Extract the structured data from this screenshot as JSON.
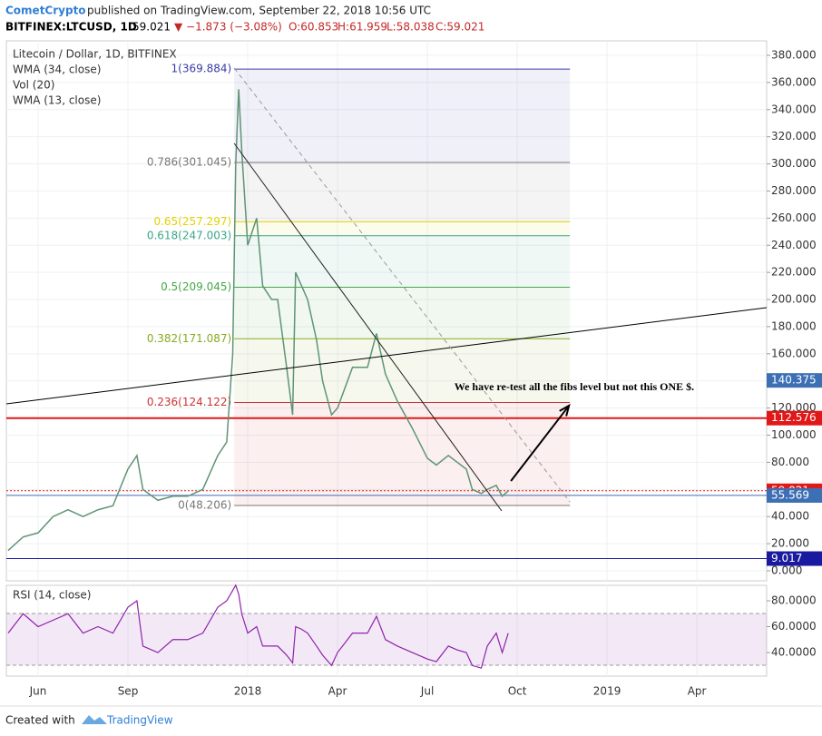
{
  "header": {
    "author": "CometCrypto",
    "published": "published on TradingView.com, September 22, 2018 10:56 UTC",
    "symbol": "BITFINEX:LTCUSD, 1D",
    "last": "59.021",
    "change": "▼ −1.873 (−3.08%)",
    "open": "O:60.853",
    "high": "H:61.959",
    "low": "L:58.038",
    "close": "C:59.021"
  },
  "footer": {
    "created": "Created with",
    "brand": "TradingView"
  },
  "chart_data": {
    "type": "line",
    "title": "Litecoin / Dollar, 1D, BITFINEX",
    "indicators": [
      "WMA (34, close)",
      "Vol (20)",
      "WMA (13, close)"
    ],
    "color": "#5f9474",
    "x": [
      4.0,
      4.5,
      5.0,
      5.5,
      6.0,
      6.5,
      7.0,
      7.5,
      8.0,
      8.3,
      8.5,
      9.0,
      9.5,
      10.0,
      10.5,
      11.0,
      11.3,
      11.5,
      11.6,
      11.7,
      11.8,
      12.0,
      12.3,
      12.5,
      12.8,
      13.0,
      13.3,
      13.5,
      13.6,
      13.8,
      14.0,
      14.3,
      14.5,
      14.8,
      15.0,
      15.5,
      16.0,
      16.3,
      16.6,
      17.0,
      17.5,
      18.0,
      18.3,
      18.7,
      19.0,
      19.3,
      19.5,
      19.8,
      20.0,
      20.3,
      20.5,
      20.7
    ],
    "values": [
      15,
      25,
      28,
      40,
      45,
      40,
      45,
      48,
      75,
      85,
      60,
      52,
      55,
      55,
      60,
      85,
      95,
      160,
      300,
      355,
      310,
      240,
      260,
      210,
      200,
      200,
      150,
      115,
      220,
      210,
      200,
      170,
      140,
      115,
      120,
      150,
      150,
      175,
      145,
      125,
      105,
      83,
      78,
      85,
      80,
      75,
      60,
      57,
      60,
      63,
      55,
      59.021
    ],
    "xlim": [
      3.94,
      29.33
    ],
    "xticks": [
      {
        "value": 5,
        "label": "Jun"
      },
      {
        "value": 8,
        "label": "Sep"
      },
      {
        "value": 12,
        "label": "2018"
      },
      {
        "value": 15,
        "label": "Apr"
      },
      {
        "value": 18,
        "label": "Jul"
      },
      {
        "value": 21,
        "label": "Oct"
      },
      {
        "value": 24,
        "label": "2019"
      },
      {
        "value": 27,
        "label": "Apr"
      }
    ],
    "ylim": [
      -7.36,
      390.7
    ],
    "yticks": [
      {
        "value": 0,
        "label": "0.000"
      },
      {
        "value": 20,
        "label": "20.000"
      },
      {
        "value": 40,
        "label": "40.000"
      },
      {
        "value": 60,
        "label": "60.000"
      },
      {
        "value": 80,
        "label": "80.000"
      },
      {
        "value": 100,
        "label": "100.000"
      },
      {
        "value": 120,
        "label": "120.000"
      },
      {
        "value": 140,
        "label": "140.000"
      },
      {
        "value": 160,
        "label": "160.000"
      },
      {
        "value": 180,
        "label": "180.000"
      },
      {
        "value": 200,
        "label": "200.000"
      },
      {
        "value": 220,
        "label": "220.000"
      },
      {
        "value": 240,
        "label": "240.000"
      },
      {
        "value": 260,
        "label": "260.000"
      },
      {
        "value": 280,
        "label": "280.000"
      },
      {
        "value": 300,
        "label": "300.000"
      },
      {
        "value": 320,
        "label": "320.000"
      },
      {
        "value": 340,
        "label": "340.000"
      },
      {
        "value": 360,
        "label": "360.000"
      },
      {
        "value": 380,
        "label": "380.000"
      }
    ],
    "grid": true,
    "fib_x": [
      11.55,
      22.76
    ],
    "fib_levels": [
      {
        "value": 369.884,
        "label": "1(369.884)",
        "color": "#3b3ba8"
      },
      {
        "value": 301.045,
        "label": "0.786(301.045)",
        "color": "#777777"
      },
      {
        "value": 257.297,
        "label": "0.65(257.297)",
        "color": "#e6d200"
      },
      {
        "value": 247.003,
        "label": "0.618(247.003)",
        "color": "#3aa68a"
      },
      {
        "value": 209.045,
        "label": "0.5(209.045)",
        "color": "#44aa44"
      },
      {
        "value": 171.087,
        "label": "0.382(171.087)",
        "color": "#88aa22"
      },
      {
        "value": 124.122,
        "label": "0.236(124.122)",
        "color": "#cc3333"
      },
      {
        "value": 48.206,
        "label": "0(48.206)",
        "color": "#777777"
      }
    ],
    "levels": [
      {
        "value": 140.375,
        "color": "#3d6fb4",
        "style": "none"
      },
      {
        "value": 112.576,
        "color": "#e01818",
        "style": "solid"
      },
      {
        "value": 59.021,
        "color": "#e01818",
        "style": "dotted"
      },
      {
        "value": 55.569,
        "color": "#3d6fb4",
        "style": "solid"
      },
      {
        "value": 9.017,
        "color": "#1a1aa0",
        "style": "solid"
      }
    ],
    "trendlines": [
      {
        "x": [
          3.94,
          29.33
        ],
        "y": [
          123.1,
          194.0
        ],
        "color": "#000000",
        "style": "solid"
      },
      {
        "x": [
          11.55,
          20.48
        ],
        "y": [
          315.1,
          44.2
        ],
        "color": "#222222",
        "style": "solid"
      },
      {
        "x": [
          11.55,
          22.76
        ],
        "y": [
          370.6,
          50.8
        ],
        "color": "#999999",
        "style": "dashed"
      },
      {
        "x": [
          20.79,
          22.73
        ],
        "y": [
          66.2,
          121.8
        ],
        "color": "#000000",
        "style": "arrow"
      }
    ],
    "annotation": {
      "text": "We have re-test all the fibs level  but not this ONE $.",
      "x": 18.9,
      "y": 135
    },
    "rsi": {
      "title": "RSI (14, close)",
      "color": "#8e24aa",
      "ylim": [
        21.8,
        91.9
      ],
      "band": [
        30.2,
        70.2
      ],
      "yticks": [
        {
          "value": 40,
          "label": "40.0000"
        },
        {
          "value": 60,
          "label": "60.0000"
        },
        {
          "value": 80,
          "label": "80.0000"
        }
      ],
      "values": [
        55,
        70,
        60,
        65,
        70,
        55,
        60,
        55,
        75,
        80,
        45,
        40,
        50,
        50,
        55,
        75,
        80,
        88,
        92,
        85,
        70,
        55,
        60,
        45,
        45,
        45,
        38,
        32,
        60,
        58,
        55,
        45,
        38,
        30,
        40,
        55,
        55,
        68,
        50,
        45,
        40,
        35,
        33,
        45,
        42,
        40,
        30,
        28,
        45,
        55,
        40,
        55
      ]
    }
  }
}
